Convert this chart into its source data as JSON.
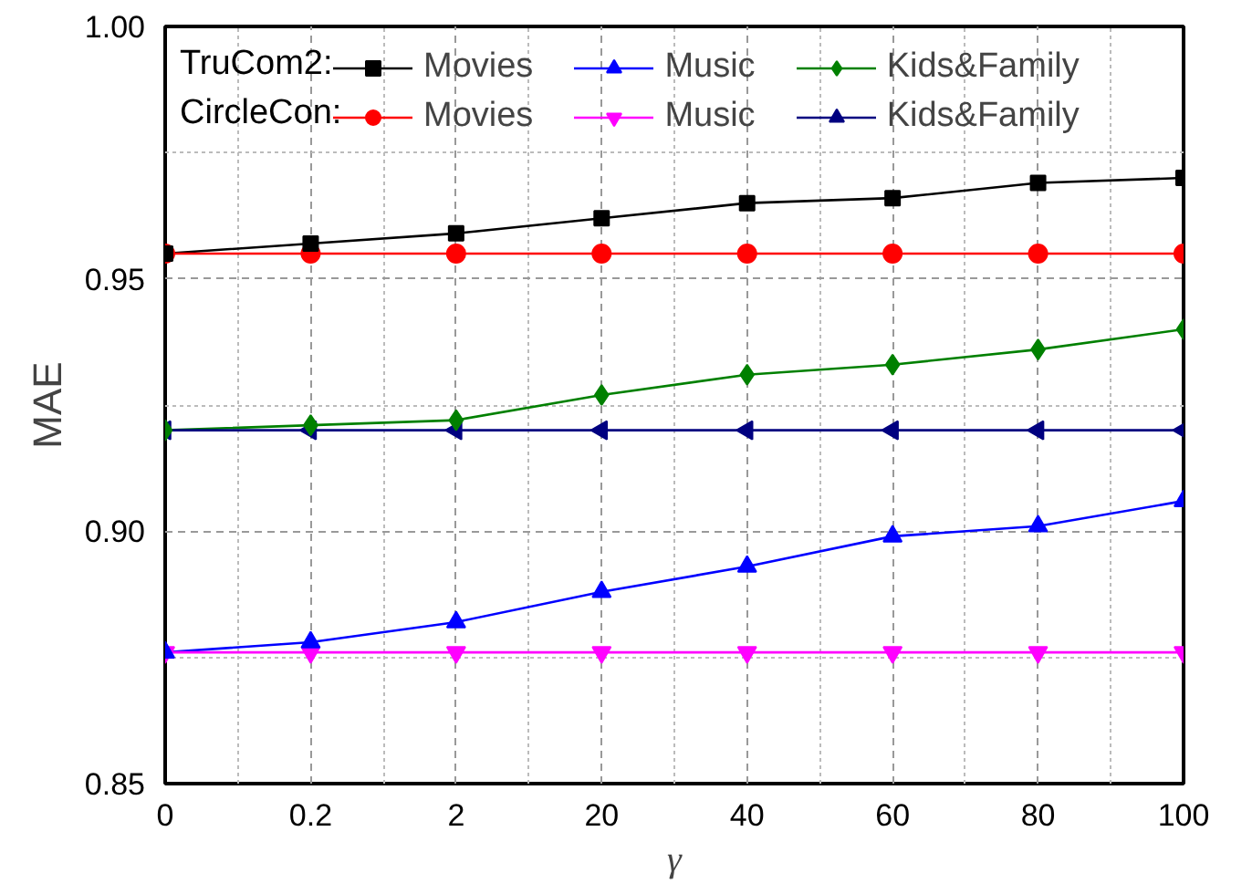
{
  "chart_data": {
    "type": "line",
    "xlabel": "γ",
    "ylabel": "MAE",
    "categories": [
      "0",
      "0.2",
      "2",
      "20",
      "40",
      "60",
      "80",
      "100"
    ],
    "ylim": [
      0.85,
      1.0
    ],
    "yticks": [
      {
        "value": 0.85,
        "label": "0.85"
      },
      {
        "value": 0.9,
        "label": "0.90"
      },
      {
        "value": 0.95,
        "label": "0.95"
      },
      {
        "value": 1.0,
        "label": "1.00"
      }
    ],
    "grid": true,
    "legend": "top",
    "line_style": "solid",
    "annotations": [
      "TruCom2:",
      "CircleCon:"
    ],
    "series": [
      {
        "name": "Movies",
        "color": "#000000",
        "marker": "square",
        "values": [
          0.955,
          0.957,
          0.959,
          0.962,
          0.965,
          0.966,
          0.969,
          0.97
        ]
      },
      {
        "name": "Music",
        "color": "#0000ff",
        "marker": "triangle",
        "values": [
          0.876,
          0.878,
          0.882,
          0.888,
          0.893,
          0.899,
          0.901,
          0.906
        ]
      },
      {
        "name": "Kids&Family",
        "color": "#008000",
        "marker": "diamond",
        "values": [
          0.92,
          0.921,
          0.922,
          0.927,
          0.931,
          0.933,
          0.936,
          0.94
        ]
      },
      {
        "name": "Movies",
        "color": "#ff0000",
        "marker": "circle",
        "values": [
          0.955,
          0.955,
          0.955,
          0.955,
          0.955,
          0.955,
          0.955,
          0.955
        ]
      },
      {
        "name": "Music",
        "color": "#ff00ff",
        "marker": "triangle_down",
        "values": [
          0.876,
          0.876,
          0.876,
          0.876,
          0.876,
          0.876,
          0.876,
          0.876
        ]
      },
      {
        "name": "Kids&Family",
        "color": "#000080",
        "marker": "triangle_left",
        "values": [
          0.92,
          0.92,
          0.92,
          0.92,
          0.92,
          0.92,
          0.92,
          0.92
        ]
      }
    ]
  }
}
